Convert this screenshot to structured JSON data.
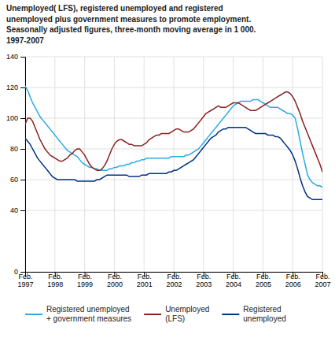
{
  "chart_data": {
    "type": "line",
    "title": "Unemployed( LFS), registered unemployed and registered\nunemployed plus government measures to promote employment.\nSeasonally adjusted figures, three-month moving average in 1 000.\n1997-2007",
    "categories": [
      "Feb.\n1997",
      null,
      null,
      null,
      null,
      null,
      null,
      null,
      null,
      null,
      null,
      null,
      "Feb.\n1998",
      null,
      null,
      null,
      null,
      null,
      null,
      null,
      null,
      null,
      null,
      null,
      "Feb.\n1999",
      null,
      null,
      null,
      null,
      null,
      null,
      null,
      null,
      null,
      null,
      null,
      "Feb.\n2000",
      null,
      null,
      null,
      null,
      null,
      null,
      null,
      null,
      null,
      null,
      null,
      "Feb.\n2001",
      null,
      null,
      null,
      null,
      null,
      null,
      null,
      null,
      null,
      null,
      null,
      "Feb.\n2002",
      null,
      null,
      null,
      null,
      null,
      null,
      null,
      null,
      null,
      null,
      null,
      "Feb.\n2003",
      null,
      null,
      null,
      null,
      null,
      null,
      null,
      null,
      null,
      null,
      null,
      "Feb.\n2004",
      null,
      null,
      null,
      null,
      null,
      null,
      null,
      null,
      null,
      null,
      null,
      "Feb.\n2005",
      null,
      null,
      null,
      null,
      null,
      null,
      null,
      null,
      null,
      null,
      null,
      "Feb.\n2006",
      null,
      null,
      null,
      null,
      null,
      null,
      null,
      null,
      null,
      null,
      null,
      "Feb.\n2007"
    ],
    "series": [
      {
        "name": "Registered unemployed\n+ government measures",
        "color": "#29ABE2",
        "values": [
          121,
          118,
          114,
          110,
          107,
          104,
          101,
          99,
          97,
          95,
          93,
          91,
          89,
          87,
          85,
          83,
          81,
          79,
          78,
          77,
          76,
          75,
          73,
          71,
          70,
          69,
          68,
          68,
          67,
          67,
          66,
          66,
          66,
          66,
          67,
          67,
          68,
          68,
          69,
          69,
          69,
          70,
          70,
          71,
          71,
          72,
          72,
          73,
          73,
          74,
          74,
          74,
          74,
          74,
          74,
          74,
          74,
          74,
          74,
          75,
          75,
          75,
          75,
          75,
          75,
          76,
          76,
          77,
          78,
          79,
          80,
          82,
          84,
          86,
          88,
          90,
          92,
          94,
          96,
          98,
          100,
          102,
          104,
          106,
          108,
          109,
          110,
          111,
          111,
          111,
          111,
          111,
          112,
          112,
          112,
          111,
          110,
          109,
          108,
          107,
          107,
          107,
          107,
          106,
          105,
          104,
          103,
          103,
          102,
          100,
          93,
          85,
          77,
          70,
          63,
          60,
          58,
          57,
          56,
          56,
          55
        ]
      },
      {
        "name": "Unemployed\n(LFS)",
        "color": "#8B2020",
        "values": [
          96,
          100,
          100,
          98,
          94,
          90,
          86,
          83,
          80,
          78,
          76,
          75,
          74,
          73,
          72,
          72,
          73,
          74,
          76,
          77,
          79,
          80,
          80,
          78,
          76,
          73,
          70,
          68,
          67,
          66,
          66,
          67,
          69,
          72,
          76,
          80,
          83,
          85,
          86,
          86,
          85,
          84,
          83,
          83,
          82,
          82,
          82,
          82,
          83,
          84,
          86,
          87,
          88,
          89,
          89,
          90,
          90,
          90,
          90,
          91,
          92,
          93,
          93,
          92,
          91,
          91,
          91,
          92,
          93,
          95,
          97,
          99,
          101,
          103,
          104,
          105,
          106,
          107,
          108,
          107,
          107,
          107,
          108,
          109,
          110,
          110,
          110,
          109,
          108,
          107,
          106,
          105,
          105,
          105,
          106,
          107,
          108,
          109,
          110,
          111,
          112,
          113,
          114,
          115,
          116,
          117,
          117,
          116,
          114,
          111,
          107,
          103,
          98,
          94,
          90,
          86,
          82,
          78,
          74,
          70,
          65
        ]
      },
      {
        "name": "Registered\nunemployed",
        "color": "#003082",
        "values": [
          87,
          85,
          83,
          80,
          77,
          74,
          72,
          70,
          68,
          66,
          64,
          62,
          61,
          60,
          60,
          60,
          60,
          60,
          60,
          60,
          60,
          59,
          59,
          59,
          59,
          59,
          59,
          59,
          59,
          60,
          60,
          61,
          62,
          63,
          63,
          63,
          63,
          63,
          63,
          63,
          63,
          63,
          62,
          62,
          62,
          62,
          62,
          63,
          63,
          63,
          64,
          64,
          64,
          64,
          64,
          64,
          64,
          64,
          65,
          65,
          66,
          66,
          67,
          68,
          69,
          70,
          71,
          72,
          73,
          75,
          77,
          79,
          81,
          83,
          85,
          87,
          88,
          89,
          91,
          92,
          93,
          93,
          94,
          94,
          94,
          94,
          94,
          94,
          94,
          94,
          93,
          92,
          91,
          90,
          90,
          90,
          90,
          90,
          89,
          89,
          89,
          88,
          88,
          87,
          85,
          83,
          81,
          79,
          76,
          72,
          67,
          61,
          56,
          52,
          49,
          48,
          47,
          47,
          47,
          47,
          47
        ]
      }
    ],
    "ylim": [
      0,
      140
    ],
    "yticks": [
      0,
      40,
      60,
      80,
      100,
      120,
      140
    ],
    "grid": true,
    "legend": "bottom"
  }
}
